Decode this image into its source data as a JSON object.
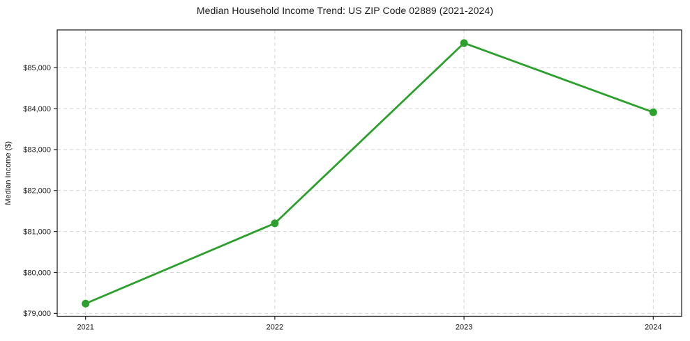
{
  "chart_data": {
    "type": "line",
    "title": "Median Household Income Trend: US ZIP Code 02889 (2021-2024)",
    "xlabel": "",
    "ylabel": "Median Income ($)",
    "x": [
      2021,
      2022,
      2023,
      2024
    ],
    "x_tick_labels": [
      "2021",
      "2022",
      "2023",
      "2024"
    ],
    "values": [
      79240,
      81200,
      85600,
      83910
    ],
    "y_ticks": [
      79000,
      80000,
      81000,
      82000,
      83000,
      84000,
      85000
    ],
    "y_tick_labels": [
      "$79,000",
      "$80,000",
      "$81,000",
      "$82,000",
      "$83,000",
      "$84,000",
      "$85,000"
    ],
    "xlim": [
      2020.85,
      2024.15
    ],
    "ylim": [
      78930,
      85920
    ],
    "grid": true,
    "grid_style": "dashed",
    "legend_position": "none",
    "colors": {
      "line": "#2ca02c",
      "marker": "#2ca02c",
      "grid": "#d4d4d4",
      "spine": "#262626",
      "tick": "#262626",
      "text": "#1a1a1a",
      "background": "#ffffff"
    }
  }
}
